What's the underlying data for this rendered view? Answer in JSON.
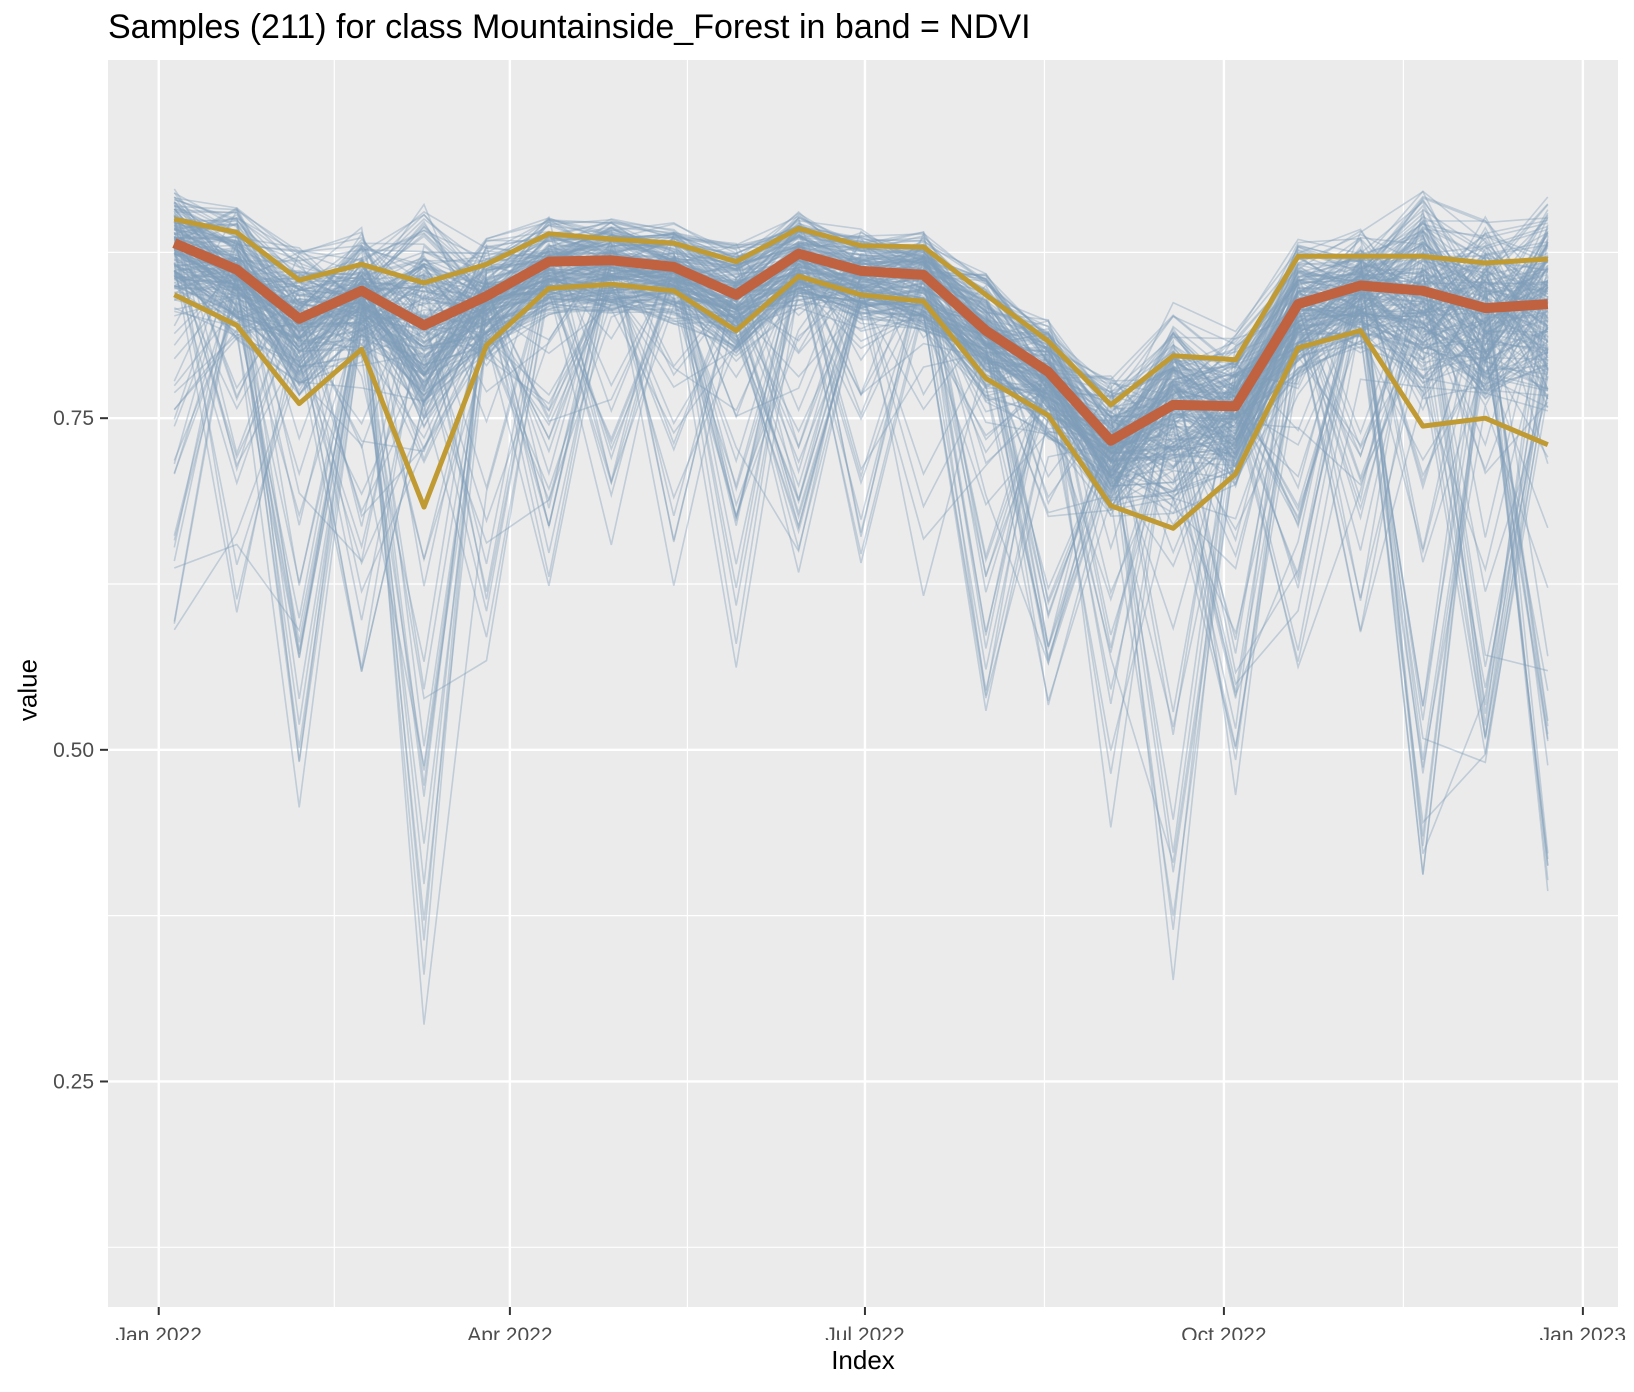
{
  "chart_data": {
    "type": "line",
    "title": "Samples (211) for class Mountainside_Forest in band = NDVI",
    "xlabel": "Index",
    "ylabel": "value",
    "x_ticks": [
      "2022-01-01",
      "2022-04-01",
      "2022-07-01",
      "2022-10-01",
      "2023-01-01"
    ],
    "x_tick_labels": [
      "Jan 2022",
      "Apr 2022",
      "Jul 2022",
      "Oct 2022",
      "Jan 2023"
    ],
    "y_ticks": [
      0.25,
      0.5,
      0.75
    ],
    "y_tick_labels": [
      "0.25",
      "0.50",
      "0.75"
    ],
    "xlim": [
      "2021-12-19",
      "2023-01-10"
    ],
    "ylim": [
      0.08,
      1.02
    ],
    "grid": true,
    "sample_count": 211,
    "x": [
      "2022-01-05",
      "2022-01-21",
      "2022-02-06",
      "2022-02-22",
      "2022-03-10",
      "2022-03-26",
      "2022-04-11",
      "2022-04-27",
      "2022-05-13",
      "2022-05-29",
      "2022-06-14",
      "2022-06-30",
      "2022-07-16",
      "2022-08-01",
      "2022-08-17",
      "2022-09-02",
      "2022-09-18",
      "2022-10-04",
      "2022-10-20",
      "2022-11-05",
      "2022-11-21",
      "2022-12-07",
      "2022-12-23"
    ],
    "series": [
      {
        "role": "median",
        "values": [
          0.882,
          0.862,
          0.825,
          0.846,
          0.82,
          0.842,
          0.868,
          0.869,
          0.864,
          0.843,
          0.874,
          0.861,
          0.858,
          0.816,
          0.785,
          0.733,
          0.76,
          0.759,
          0.836,
          0.85,
          0.846,
          0.833,
          0.836
        ]
      },
      {
        "role": "upper-quantile",
        "values": [
          0.9,
          0.89,
          0.854,
          0.866,
          0.852,
          0.866,
          0.889,
          0.885,
          0.882,
          0.868,
          0.893,
          0.88,
          0.879,
          0.843,
          0.808,
          0.76,
          0.797,
          0.794,
          0.872,
          0.872,
          0.872,
          0.867,
          0.87
        ]
      },
      {
        "role": "lower-quantile",
        "values": [
          0.843,
          0.82,
          0.761,
          0.802,
          0.683,
          0.805,
          0.848,
          0.851,
          0.846,
          0.816,
          0.857,
          0.843,
          0.838,
          0.78,
          0.752,
          0.684,
          0.667,
          0.708,
          0.803,
          0.816,
          0.744,
          0.75,
          0.73
        ]
      }
    ],
    "colors": {
      "panel_background": "#ebebeb",
      "grid_line": "#ffffff",
      "sample_lines": "#7f9db8",
      "median_line": "#c0623f",
      "quantile_lines": "#c09a33"
    }
  }
}
